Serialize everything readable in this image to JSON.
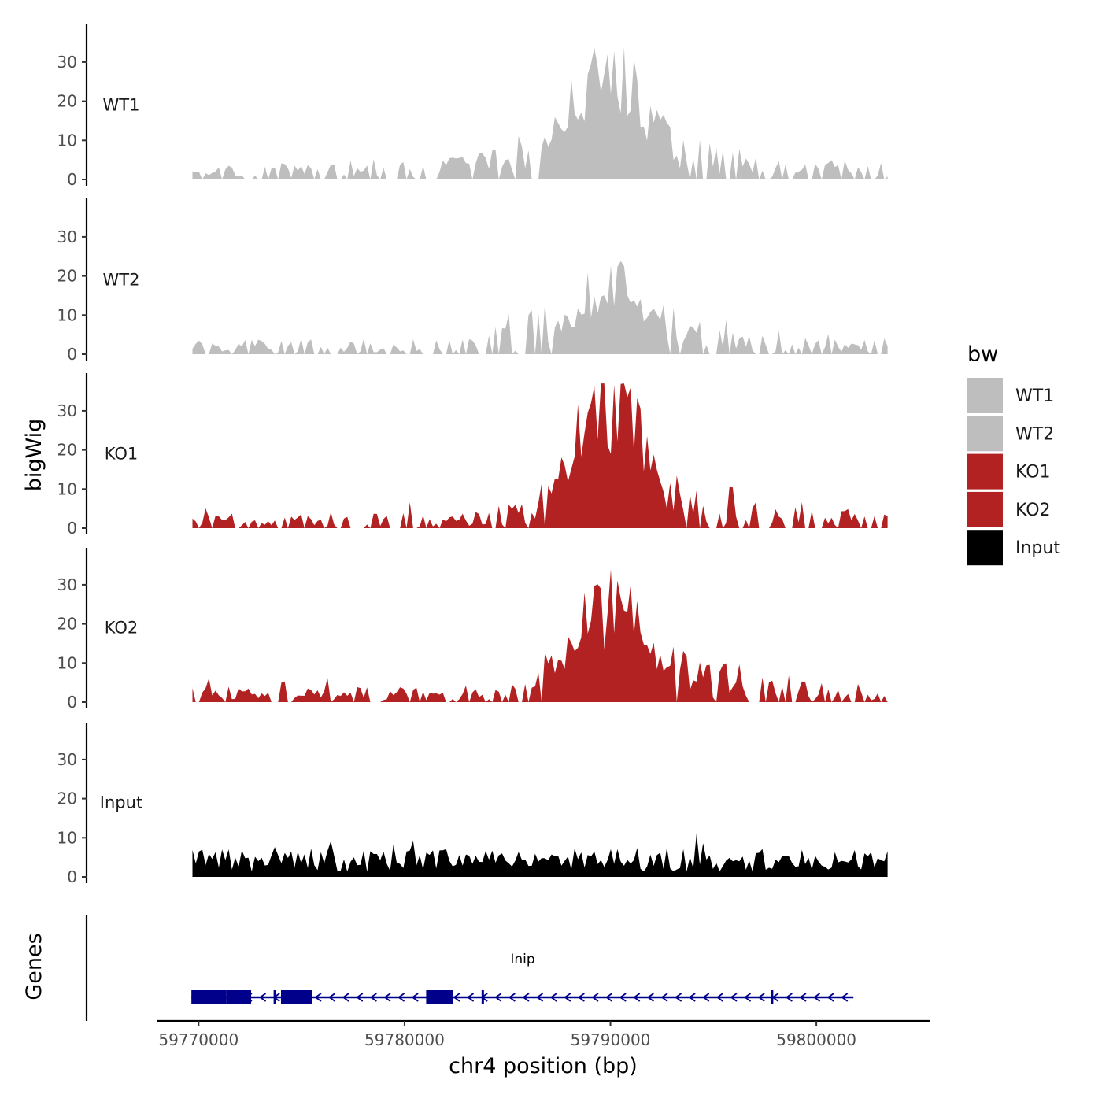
{
  "chart_data": {
    "type": "area",
    "subtype": "genome-browser-coverage-tracks",
    "xlabel": "chr4 position (bp)",
    "ylabel": "bigWig",
    "gene_panel_label": "Genes",
    "xlim": [
      59768000,
      59805500
    ],
    "data_xrange": [
      59769700,
      59803600
    ],
    "xticks": [
      59770000,
      59780000,
      59790000,
      59800000
    ],
    "xtick_labels": [
      "59770000",
      "59780000",
      "59790000",
      "59800000"
    ],
    "ylim": [
      0,
      39
    ],
    "yticks": [
      0,
      10,
      20,
      30
    ],
    "ytick_labels": [
      "0",
      "10",
      "20",
      "30"
    ],
    "legend": {
      "title": "bw",
      "position": "right",
      "entries": [
        {
          "label": "WT1",
          "color": "#bebebe"
        },
        {
          "label": "WT2",
          "color": "#bebebe"
        },
        {
          "label": "KO1",
          "color": "#b22222"
        },
        {
          "label": "KO2",
          "color": "#b22222"
        },
        {
          "label": "Input",
          "color": "#000000"
        }
      ]
    },
    "series": [
      {
        "name": "WT1",
        "color": "#bebebe",
        "profile": [
          [
            59769700,
            1
          ],
          [
            59772000,
            2
          ],
          [
            59774000,
            2
          ],
          [
            59776000,
            2
          ],
          [
            59778000,
            3
          ],
          [
            59780500,
            2
          ],
          [
            59782500,
            3
          ],
          [
            59784500,
            4
          ],
          [
            59786000,
            6
          ],
          [
            59787000,
            10
          ],
          [
            59788000,
            18
          ],
          [
            59789000,
            24
          ],
          [
            59790000,
            27
          ],
          [
            59791000,
            24
          ],
          [
            59792000,
            16
          ],
          [
            59793000,
            9
          ],
          [
            59794000,
            5
          ],
          [
            59796000,
            4
          ],
          [
            59798000,
            3
          ],
          [
            59800000,
            3
          ],
          [
            59803600,
            2
          ]
        ],
        "gaps": [
          [
            59772900,
            59773150
          ],
          [
            59780950,
            59781550
          ]
        ]
      },
      {
        "name": "WT2",
        "color": "#bebebe",
        "profile": [
          [
            59769700,
            2
          ],
          [
            59772000,
            2
          ],
          [
            59774000,
            2
          ],
          [
            59776000,
            2
          ],
          [
            59778000,
            2
          ],
          [
            59780500,
            2
          ],
          [
            59782500,
            2
          ],
          [
            59784500,
            3
          ],
          [
            59786000,
            5
          ],
          [
            59787000,
            7
          ],
          [
            59788000,
            11
          ],
          [
            59789000,
            16
          ],
          [
            59790000,
            20
          ],
          [
            59791000,
            18
          ],
          [
            59792000,
            12
          ],
          [
            59793000,
            7
          ],
          [
            59794000,
            5
          ],
          [
            59796000,
            4
          ],
          [
            59798000,
            3
          ],
          [
            59800000,
            2
          ],
          [
            59803600,
            2
          ]
        ],
        "gaps": [
          [
            59780750,
            59781150
          ]
        ]
      },
      {
        "name": "KO1",
        "color": "#b22222",
        "profile": [
          [
            59769700,
            2
          ],
          [
            59772000,
            2
          ],
          [
            59774000,
            2
          ],
          [
            59776000,
            2
          ],
          [
            59778000,
            2
          ],
          [
            59780500,
            2
          ],
          [
            59782500,
            2
          ],
          [
            59784500,
            3
          ],
          [
            59786000,
            4
          ],
          [
            59787000,
            7
          ],
          [
            59788000,
            19
          ],
          [
            59789000,
            28
          ],
          [
            59790000,
            31
          ],
          [
            59791000,
            28
          ],
          [
            59792000,
            15
          ],
          [
            59793000,
            7
          ],
          [
            59794000,
            5
          ],
          [
            59796000,
            5
          ],
          [
            59798000,
            4
          ],
          [
            59800000,
            3
          ],
          [
            59803600,
            2
          ]
        ],
        "gaps": []
      },
      {
        "name": "KO2",
        "color": "#b22222",
        "profile": [
          [
            59769700,
            2
          ],
          [
            59772000,
            2
          ],
          [
            59774000,
            2
          ],
          [
            59776000,
            2
          ],
          [
            59778000,
            2
          ],
          [
            59780500,
            2
          ],
          [
            59782500,
            2
          ],
          [
            59784500,
            2
          ],
          [
            59786000,
            3
          ],
          [
            59787000,
            8
          ],
          [
            59788000,
            15
          ],
          [
            59789000,
            22
          ],
          [
            59790000,
            25
          ],
          [
            59791000,
            23
          ],
          [
            59792000,
            12
          ],
          [
            59793000,
            7
          ],
          [
            59794000,
            6
          ],
          [
            59796000,
            5
          ],
          [
            59798000,
            4
          ],
          [
            59800000,
            3
          ],
          [
            59803600,
            2
          ]
        ],
        "gaps": []
      },
      {
        "name": "Input",
        "color": "#000000",
        "profile": [
          [
            59769700,
            5
          ],
          [
            59772000,
            5
          ],
          [
            59774000,
            5
          ],
          [
            59776000,
            5
          ],
          [
            59778000,
            5
          ],
          [
            59780500,
            5
          ],
          [
            59782500,
            5
          ],
          [
            59784500,
            5
          ],
          [
            59786000,
            5
          ],
          [
            59787000,
            5
          ],
          [
            59788000,
            5
          ],
          [
            59789000,
            5
          ],
          [
            59790000,
            5
          ],
          [
            59791000,
            5
          ],
          [
            59792000,
            5
          ],
          [
            59793000,
            5
          ],
          [
            59794000,
            5
          ],
          [
            59796000,
            5
          ],
          [
            59798000,
            5
          ],
          [
            59800000,
            5
          ],
          [
            59803600,
            5
          ]
        ],
        "gaps": []
      }
    ],
    "gene": {
      "name": "Inip",
      "strand": "-",
      "start": 59769650,
      "end": 59801800,
      "color": "#00008b",
      "exons": [
        [
          59769650,
          59771350
        ],
        [
          59771350,
          59772550
        ],
        [
          59774000,
          59775500
        ],
        [
          59781050,
          59782350
        ]
      ],
      "small_exons": [
        59773700,
        59783800,
        59797850
      ]
    }
  }
}
